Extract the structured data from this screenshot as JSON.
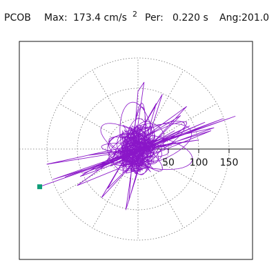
{
  "header": {
    "station": "PCOB",
    "max_label": "Max:",
    "max_value": "173.4 cm/s",
    "max_exponent": "2",
    "period_label": "Per:",
    "period_value": "0.220 s",
    "angle_label": "Ang:",
    "angle_value": "201.0"
  },
  "colors": {
    "trace": "#8a16c8",
    "marker": "#0f9d78",
    "axis": "#111111",
    "grid": "#6e6e6e",
    "frame": "#111111",
    "background": "#ffffff"
  },
  "chart_data": {
    "type": "scatter",
    "title": "PCOB  Max: 173.4 cm/s2  Per: 0.220 s  Ang: 201.0",
    "radial_ticks": [
      "50",
      "100",
      "150"
    ],
    "radial_tick_values": [
      50,
      100,
      150
    ],
    "grid_rings": [
      50,
      100,
      150
    ],
    "grid_spokes_deg": [
      0,
      30,
      60,
      90,
      120,
      150,
      180,
      210,
      240,
      270,
      300,
      330
    ],
    "r_max": 173.4,
    "peak": {
      "angle_deg": 201.0,
      "magnitude": 173.4,
      "x": -161.9,
      "y": -62.1
    },
    "grid": true,
    "trajectory": {
      "note": "continuous acceleration orbit",
      "x": [
        0,
        12,
        -8,
        25,
        -18,
        40,
        -30,
        60,
        -45,
        85,
        -70,
        110,
        -90,
        140,
        -120,
        160,
        -140,
        120,
        -100,
        80,
        -60,
        40,
        -20,
        10,
        0,
        -15,
        30,
        -50,
        70,
        -95,
        125,
        -150,
        100,
        -80,
        55,
        -35,
        20,
        -161.9
      ],
      "y": [
        0,
        8,
        -6,
        14,
        -12,
        22,
        -20,
        30,
        -28,
        38,
        -34,
        44,
        -40,
        50,
        -46,
        54,
        -50,
        30,
        -60,
        70,
        -80,
        90,
        -100,
        110,
        95,
        -85,
        75,
        -65,
        55,
        -45,
        35,
        -25,
        15,
        -10,
        6,
        -4,
        2,
        -62.1
      ]
    }
  }
}
